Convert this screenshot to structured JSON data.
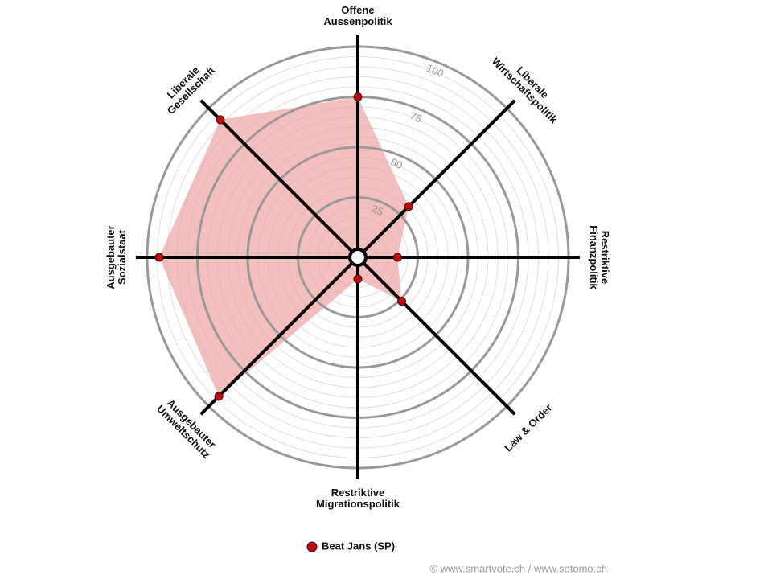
{
  "chart_data": {
    "type": "radar",
    "categories": [
      "Offene\nAussenpolitik",
      "Liberale\nWirtschaftspolitik",
      "Restriktive\nFinanzpolitik",
      "Law & Order",
      "Restriktive\nMigrationspolitik",
      "Ausgebauter\nUmweltschutz",
      "Ausgebauter\nSozialstaat",
      "Liberale\nGesellschaft"
    ],
    "series": [
      {
        "name": "Beat Jans (SP)",
        "color": "#cc0000",
        "fill": "#eea3a3",
        "values": [
          75,
          31,
          15,
          26,
          6,
          93,
          94,
          92
        ]
      }
    ],
    "ylim": [
      0,
      100
    ],
    "yticks": [
      25,
      50,
      75,
      100
    ],
    "grid": true,
    "source": "© www.smartvote.ch / www.sotomo.ch"
  }
}
